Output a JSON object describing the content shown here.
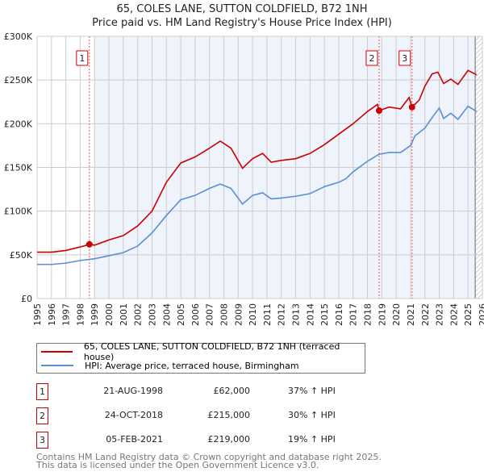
{
  "chart_data": {
    "type": "line",
    "title": "65, COLES LANE, SUTTON COLDFIELD, B72 1NH",
    "subtitle": "Price paid vs. HM Land Registry's House Price Index (HPI)",
    "xlim": [
      1995,
      2026
    ],
    "ylim": [
      0,
      300000
    ],
    "yticks": [
      {
        "v": 0,
        "label": "£0"
      },
      {
        "v": 50000,
        "label": "£50K"
      },
      {
        "v": 100000,
        "label": "£100K"
      },
      {
        "v": 150000,
        "label": "£150K"
      },
      {
        "v": 200000,
        "label": "£200K"
      },
      {
        "v": 250000,
        "label": "£250K"
      },
      {
        "v": 300000,
        "label": "£300K"
      }
    ],
    "xticks": [
      "1995",
      "1996",
      "1997",
      "1998",
      "1999",
      "2000",
      "2001",
      "2002",
      "2003",
      "2004",
      "2005",
      "2006",
      "2007",
      "2008",
      "2009",
      "2010",
      "2011",
      "2012",
      "2013",
      "2014",
      "2015",
      "2016",
      "2017",
      "2018",
      "2019",
      "2020",
      "2021",
      "2022",
      "2023",
      "2024",
      "2025",
      "2026"
    ],
    "grid": true,
    "shaded_range": [
      1999,
      2025.5
    ],
    "hatched_from": 2025.5,
    "series": [
      {
        "name": "65, COLES LANE, SUTTON COLDFIELD, B72 1NH (terraced house)",
        "color": "#cc0000",
        "x": [
          1995,
          1996,
          1997,
          1998,
          1998.64,
          1999,
          2000,
          2001,
          2002,
          2003,
          2004,
          2005,
          2006,
          2007,
          2007.75,
          2008.5,
          2009.3,
          2010,
          2010.7,
          2011.3,
          2012,
          2013,
          2014,
          2015,
          2016,
          2017,
          2018,
          2018.7,
          2018.81,
          2019.5,
          2020.3,
          2020.9,
          2021.1,
          2021.6,
          2022,
          2022.5,
          2022.9,
          2023.3,
          2023.8,
          2024.3,
          2025,
          2025.6
        ],
        "y": [
          53000,
          53000,
          55000,
          59000,
          62000,
          61000,
          67000,
          72000,
          83000,
          100000,
          133000,
          155000,
          162000,
          172000,
          180000,
          172000,
          149000,
          160000,
          166000,
          156000,
          158000,
          160000,
          166000,
          176000,
          188000,
          200000,
          214000,
          222000,
          215000,
          219000,
          217000,
          230000,
          219000,
          227000,
          243000,
          257000,
          259000,
          246000,
          251000,
          245000,
          261000,
          256000
        ]
      },
      {
        "name": "HPI: Average price, terraced house, Birmingham",
        "color": "#5b8fd4",
        "x": [
          1995,
          1996,
          1997,
          1998,
          1999,
          2000,
          2001,
          2002,
          2003,
          2004,
          2005,
          2006,
          2007,
          2007.75,
          2008.5,
          2009.3,
          2010,
          2010.7,
          2011.3,
          2012,
          2013,
          2014,
          2015,
          2016,
          2016.5,
          2017,
          2018,
          2018.8,
          2019.5,
          2020.3,
          2021,
          2021.3,
          2022,
          2022.5,
          2023,
          2023.3,
          2023.8,
          2024.3,
          2025,
          2025.6
        ],
        "y": [
          39000,
          39000,
          40500,
          43500,
          45500,
          49000,
          52500,
          60000,
          75000,
          95000,
          113000,
          118000,
          126000,
          131000,
          126000,
          108000,
          118000,
          121000,
          114000,
          115000,
          117000,
          120000,
          128000,
          133000,
          137000,
          145000,
          157000,
          165000,
          167000,
          167000,
          175000,
          186000,
          195000,
          207000,
          218000,
          206000,
          212000,
          205000,
          220000,
          214000
        ]
      }
    ],
    "sales": [
      {
        "id": "1",
        "x": 1998.64,
        "y": 62000,
        "date": "21-AUG-1998",
        "price": "£62,000",
        "hpi": "37% ↑ HPI"
      },
      {
        "id": "2",
        "x": 2018.81,
        "y": 215000,
        "date": "24-OCT-2018",
        "price": "£215,000",
        "hpi": "30% ↑ HPI"
      },
      {
        "id": "3",
        "x": 2021.1,
        "y": 219000,
        "date": "05-FEB-2021",
        "price": "£219,000",
        "hpi": "19% ↑ HPI"
      }
    ]
  },
  "footer": [
    "Contains HM Land Registry data © Crown copyright and database right 2025.",
    "This data is licensed under the Open Government Licence v3.0."
  ]
}
